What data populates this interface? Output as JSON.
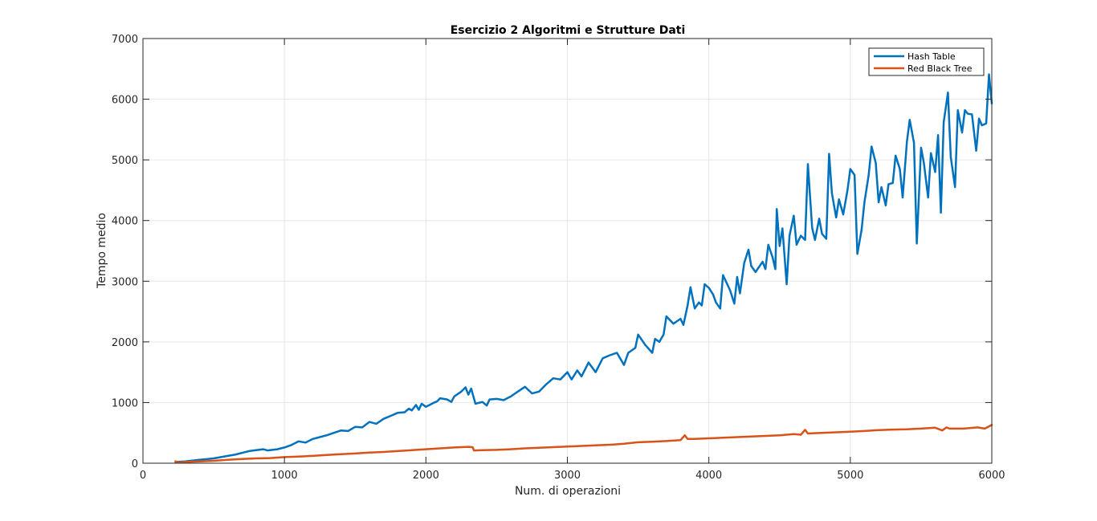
{
  "chart_data": {
    "type": "line",
    "title": "Esercizio 2 Algoritmi e Strutture Dati",
    "xlabel": "Num. di operazioni",
    "ylabel": "Tempo medio",
    "xlim": [
      0,
      6000
    ],
    "ylim": [
      0,
      7000
    ],
    "xticks": [
      0,
      1000,
      2000,
      3000,
      4000,
      5000,
      6000
    ],
    "yticks": [
      0,
      1000,
      2000,
      3000,
      4000,
      5000,
      6000,
      7000
    ],
    "xtick_labels": [
      "0",
      "1000",
      "2000",
      "3000",
      "4000",
      "5000",
      "6000"
    ],
    "ytick_labels": [
      "0",
      "1000",
      "2000",
      "3000",
      "4000",
      "5000",
      "6000",
      "7000"
    ],
    "grid": true,
    "legend_position": "top-right",
    "series": [
      {
        "name": "Hash Table",
        "color": "#0072BD",
        "points": [
          [
            230,
            20
          ],
          [
            300,
            30
          ],
          [
            400,
            55
          ],
          [
            500,
            80
          ],
          [
            600,
            120
          ],
          [
            650,
            140
          ],
          [
            700,
            170
          ],
          [
            750,
            200
          ],
          [
            800,
            215
          ],
          [
            850,
            230
          ],
          [
            880,
            210
          ],
          [
            950,
            230
          ],
          [
            1000,
            260
          ],
          [
            1050,
            300
          ],
          [
            1100,
            360
          ],
          [
            1150,
            340
          ],
          [
            1200,
            400
          ],
          [
            1250,
            430
          ],
          [
            1300,
            460
          ],
          [
            1350,
            500
          ],
          [
            1400,
            540
          ],
          [
            1450,
            530
          ],
          [
            1500,
            600
          ],
          [
            1550,
            590
          ],
          [
            1600,
            680
          ],
          [
            1650,
            650
          ],
          [
            1700,
            730
          ],
          [
            1750,
            780
          ],
          [
            1800,
            830
          ],
          [
            1850,
            840
          ],
          [
            1880,
            900
          ],
          [
            1900,
            870
          ],
          [
            1930,
            960
          ],
          [
            1950,
            880
          ],
          [
            1970,
            980
          ],
          [
            2000,
            930
          ],
          [
            2050,
            990
          ],
          [
            2080,
            1020
          ],
          [
            2100,
            1070
          ],
          [
            2150,
            1050
          ],
          [
            2180,
            1010
          ],
          [
            2200,
            1100
          ],
          [
            2250,
            1180
          ],
          [
            2280,
            1250
          ],
          [
            2300,
            1130
          ],
          [
            2320,
            1230
          ],
          [
            2350,
            980
          ],
          [
            2400,
            1010
          ],
          [
            2430,
            950
          ],
          [
            2450,
            1050
          ],
          [
            2500,
            1060
          ],
          [
            2550,
            1040
          ],
          [
            2600,
            1100
          ],
          [
            2650,
            1180
          ],
          [
            2700,
            1260
          ],
          [
            2750,
            1150
          ],
          [
            2800,
            1180
          ],
          [
            2850,
            1300
          ],
          [
            2900,
            1400
          ],
          [
            2950,
            1380
          ],
          [
            3000,
            1500
          ],
          [
            3030,
            1380
          ],
          [
            3070,
            1530
          ],
          [
            3100,
            1430
          ],
          [
            3150,
            1660
          ],
          [
            3200,
            1500
          ],
          [
            3250,
            1730
          ],
          [
            3300,
            1780
          ],
          [
            3350,
            1820
          ],
          [
            3400,
            1620
          ],
          [
            3430,
            1820
          ],
          [
            3480,
            1900
          ],
          [
            3500,
            2120
          ],
          [
            3550,
            1950
          ],
          [
            3600,
            1820
          ],
          [
            3620,
            2050
          ],
          [
            3650,
            2000
          ],
          [
            3680,
            2120
          ],
          [
            3700,
            2420
          ],
          [
            3750,
            2300
          ],
          [
            3800,
            2380
          ],
          [
            3820,
            2280
          ],
          [
            3850,
            2600
          ],
          [
            3870,
            2900
          ],
          [
            3900,
            2550
          ],
          [
            3930,
            2650
          ],
          [
            3950,
            2600
          ],
          [
            3970,
            2950
          ],
          [
            4000,
            2890
          ],
          [
            4030,
            2780
          ],
          [
            4050,
            2650
          ],
          [
            4080,
            2550
          ],
          [
            4100,
            3100
          ],
          [
            4130,
            2950
          ],
          [
            4150,
            2850
          ],
          [
            4180,
            2630
          ],
          [
            4200,
            3070
          ],
          [
            4220,
            2800
          ],
          [
            4250,
            3300
          ],
          [
            4280,
            3520
          ],
          [
            4300,
            3250
          ],
          [
            4330,
            3150
          ],
          [
            4350,
            3220
          ],
          [
            4380,
            3320
          ],
          [
            4400,
            3200
          ],
          [
            4420,
            3600
          ],
          [
            4450,
            3400
          ],
          [
            4470,
            3200
          ],
          [
            4480,
            4190
          ],
          [
            4500,
            3580
          ],
          [
            4520,
            3870
          ],
          [
            4550,
            2950
          ],
          [
            4570,
            3750
          ],
          [
            4600,
            4080
          ],
          [
            4620,
            3600
          ],
          [
            4650,
            3750
          ],
          [
            4680,
            3680
          ],
          [
            4700,
            4930
          ],
          [
            4730,
            3880
          ],
          [
            4750,
            3680
          ],
          [
            4780,
            4030
          ],
          [
            4800,
            3780
          ],
          [
            4830,
            3700
          ],
          [
            4850,
            5100
          ],
          [
            4870,
            4450
          ],
          [
            4900,
            4050
          ],
          [
            4920,
            4350
          ],
          [
            4950,
            4100
          ],
          [
            4980,
            4500
          ],
          [
            5000,
            4850
          ],
          [
            5030,
            4750
          ],
          [
            5050,
            3450
          ],
          [
            5080,
            3850
          ],
          [
            5100,
            4300
          ],
          [
            5130,
            4750
          ],
          [
            5150,
            5220
          ],
          [
            5180,
            4950
          ],
          [
            5200,
            4300
          ],
          [
            5220,
            4550
          ],
          [
            5250,
            4250
          ],
          [
            5270,
            4600
          ],
          [
            5300,
            4620
          ],
          [
            5320,
            5070
          ],
          [
            5350,
            4850
          ],
          [
            5370,
            4380
          ],
          [
            5400,
            5300
          ],
          [
            5420,
            5660
          ],
          [
            5450,
            5280
          ],
          [
            5470,
            3620
          ],
          [
            5500,
            5200
          ],
          [
            5520,
            4950
          ],
          [
            5550,
            4380
          ],
          [
            5570,
            5110
          ],
          [
            5600,
            4800
          ],
          [
            5620,
            5410
          ],
          [
            5640,
            4130
          ],
          [
            5660,
            5620
          ],
          [
            5690,
            6110
          ],
          [
            5710,
            5050
          ],
          [
            5740,
            4550
          ],
          [
            5760,
            5820
          ],
          [
            5790,
            5450
          ],
          [
            5810,
            5820
          ],
          [
            5830,
            5760
          ],
          [
            5860,
            5750
          ],
          [
            5890,
            5150
          ],
          [
            5910,
            5680
          ],
          [
            5930,
            5570
          ],
          [
            5960,
            5600
          ],
          [
            5980,
            6410
          ],
          [
            6000,
            5930
          ]
        ]
      },
      {
        "name": "Red Black Tree",
        "color": "#D95319",
        "points": [
          [
            230,
            30
          ],
          [
            250,
            10
          ],
          [
            300,
            20
          ],
          [
            400,
            30
          ],
          [
            500,
            40
          ],
          [
            600,
            55
          ],
          [
            700,
            70
          ],
          [
            800,
            80
          ],
          [
            900,
            85
          ],
          [
            1000,
            100
          ],
          [
            1100,
            110
          ],
          [
            1200,
            120
          ],
          [
            1300,
            135
          ],
          [
            1400,
            150
          ],
          [
            1500,
            160
          ],
          [
            1600,
            175
          ],
          [
            1700,
            185
          ],
          [
            1800,
            200
          ],
          [
            1900,
            215
          ],
          [
            2000,
            230
          ],
          [
            2100,
            245
          ],
          [
            2200,
            260
          ],
          [
            2300,
            270
          ],
          [
            2330,
            265
          ],
          [
            2340,
            210
          ],
          [
            2400,
            215
          ],
          [
            2500,
            220
          ],
          [
            2600,
            230
          ],
          [
            2700,
            245
          ],
          [
            2800,
            255
          ],
          [
            2900,
            265
          ],
          [
            3000,
            275
          ],
          [
            3100,
            285
          ],
          [
            3200,
            295
          ],
          [
            3300,
            305
          ],
          [
            3400,
            320
          ],
          [
            3500,
            345
          ],
          [
            3600,
            355
          ],
          [
            3700,
            365
          ],
          [
            3800,
            380
          ],
          [
            3830,
            460
          ],
          [
            3850,
            400
          ],
          [
            3900,
            400
          ],
          [
            4000,
            410
          ],
          [
            4100,
            420
          ],
          [
            4200,
            430
          ],
          [
            4300,
            440
          ],
          [
            4400,
            450
          ],
          [
            4500,
            460
          ],
          [
            4600,
            480
          ],
          [
            4650,
            470
          ],
          [
            4680,
            550
          ],
          [
            4700,
            490
          ],
          [
            4800,
            500
          ],
          [
            4900,
            510
          ],
          [
            5000,
            520
          ],
          [
            5100,
            530
          ],
          [
            5200,
            545
          ],
          [
            5300,
            555
          ],
          [
            5400,
            560
          ],
          [
            5500,
            570
          ],
          [
            5600,
            585
          ],
          [
            5650,
            540
          ],
          [
            5680,
            590
          ],
          [
            5700,
            570
          ],
          [
            5800,
            570
          ],
          [
            5900,
            590
          ],
          [
            5950,
            570
          ],
          [
            6000,
            630
          ]
        ]
      }
    ]
  }
}
